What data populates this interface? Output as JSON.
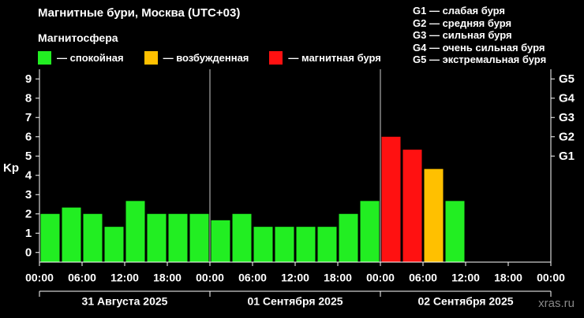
{
  "title": "Магнитные бури, Москва (UTC+03)",
  "subtitle": "Магнитосфера",
  "legend": [
    {
      "label": "— спокойная",
      "color": "#22ee22"
    },
    {
      "label": "— возбужденная",
      "color": "#ffc000"
    },
    {
      "label": "— магнитная буря",
      "color": "#ff1111"
    }
  ],
  "storm_legend": [
    "G1 — слабая буря",
    "G2 — средняя буря",
    "G3 — сильная буря",
    "G4 — очень сильная буря",
    "G5 — экстремальная буря"
  ],
  "watermark": "xras.ru",
  "chart_data": {
    "type": "bar",
    "ylabel": "Kp",
    "ylim": [
      0,
      9
    ],
    "yticks": [
      0,
      1,
      2,
      3,
      4,
      5,
      6,
      7,
      8,
      9
    ],
    "right_ticks": [
      {
        "label": "G1",
        "kp": 5
      },
      {
        "label": "G2",
        "kp": 6
      },
      {
        "label": "G3",
        "kp": 7
      },
      {
        "label": "G4",
        "kp": 8
      },
      {
        "label": "G5",
        "kp": 9
      }
    ],
    "x_tick_labels": [
      "00:00",
      "06:00",
      "12:00",
      "18:00",
      "00:00",
      "06:00",
      "12:00",
      "18:00",
      "00:00",
      "06:00",
      "12:00",
      "18:00",
      "00:00"
    ],
    "days": [
      "31 Августа 2025",
      "01 Сентября 2025",
      "02 Сентября 2025"
    ],
    "slots_per_day": 8,
    "values": [
      2.0,
      2.33,
      2.0,
      1.33,
      2.67,
      2.0,
      2.0,
      2.0,
      1.67,
      2.0,
      1.33,
      1.33,
      1.33,
      1.33,
      2.0,
      2.67,
      6.0,
      5.33,
      4.33,
      2.67
    ],
    "colors": {
      "quiet": "#22ee22",
      "active": "#ffc000",
      "storm": "#ff1111"
    },
    "grid": false
  }
}
